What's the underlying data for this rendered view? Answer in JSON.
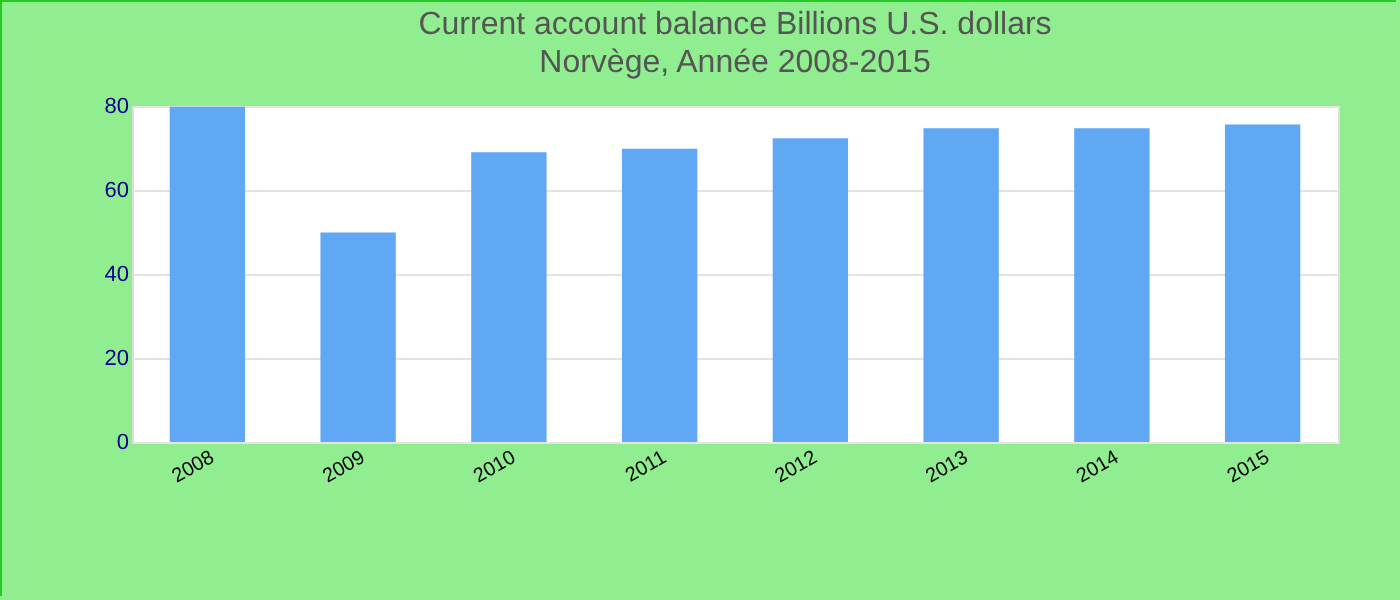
{
  "chart_data": {
    "type": "bar",
    "title": "Current account balance Billions U.S. dollars",
    "subtitle": "Norvège, Année 2008-2015",
    "categories": [
      "2008",
      "2009",
      "2010",
      "2011",
      "2012",
      "2013",
      "2014",
      "2015"
    ],
    "values": [
      79.8,
      49.9,
      69,
      69.8,
      72.3,
      74.7,
      74.7,
      75.6
    ],
    "color": "#60a8f4",
    "ylim": [
      0,
      80
    ],
    "yticks": [
      0,
      20,
      40,
      60,
      80
    ],
    "grid": "y"
  }
}
